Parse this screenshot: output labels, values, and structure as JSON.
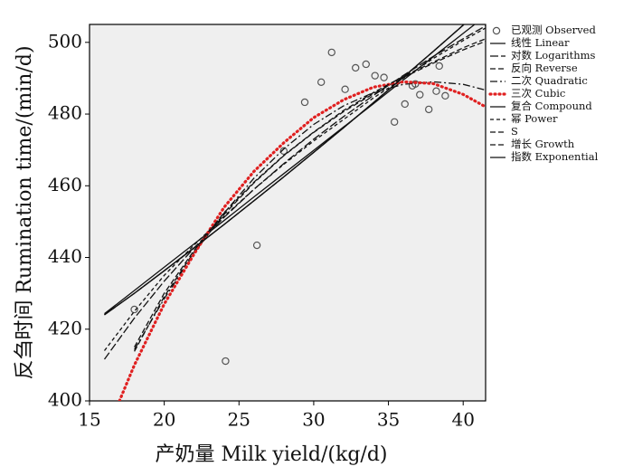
{
  "chart_data": {
    "type": "scatter",
    "x_label": "产奶量 Milk yield/(kg/d)",
    "y_label": "反刍时间 Rumination time/(min/d)",
    "xlim": [
      15,
      41.5
    ],
    "ylim": [
      400,
      505
    ],
    "xticks": [
      15,
      20,
      25,
      30,
      35,
      40
    ],
    "yticks": [
      400,
      420,
      440,
      460,
      480,
      500
    ],
    "legend": "outside-right",
    "series": [
      {
        "name": "已观测 Observed",
        "color": "#555555",
        "marker": "circle",
        "x": [
          18.0,
          24.1,
          26.2,
          28.0,
          29.4,
          30.5,
          31.2,
          32.1,
          32.8,
          33.5,
          34.1,
          34.7,
          35.4,
          36.1,
          36.6,
          36.8,
          37.1,
          37.7,
          38.2,
          38.4,
          38.8
        ],
        "values": [
          425.5,
          411.1,
          443.4,
          469.7,
          483.3,
          488.9,
          497.2,
          486.9,
          492.9,
          493.9,
          490.7,
          490.2,
          477.8,
          482.8,
          487.9,
          488.4,
          485.4,
          481.3,
          486.4,
          493.4,
          485.1
        ]
      },
      {
        "name": "线性 Linear",
        "color": "#111111",
        "line_style": "solid",
        "x": [
          16,
          18,
          20,
          22,
          24,
          26,
          28,
          30,
          32,
          34,
          36,
          38,
          40,
          41.5
        ],
        "values": [
          424.3,
          430.8,
          437.3,
          443.8,
          450.3,
          456.9,
          463.4,
          469.9,
          476.4,
          482.9,
          489.5,
          496.0,
          502.5,
          507.4
        ]
      },
      {
        "name": "对数 Logarithms",
        "color": "#111111",
        "line_style": "longdash",
        "x": [
          16,
          18,
          20,
          22,
          24,
          26,
          28,
          30,
          32,
          34,
          36,
          38,
          40,
          41.5
        ],
        "values": [
          411.6,
          423.1,
          433.4,
          442.7,
          451.2,
          459.0,
          466.2,
          473.0,
          479.3,
          485.2,
          490.8,
          496.1,
          501.0,
          504.6
        ]
      },
      {
        "name": "反向 Reverse",
        "color": "#111111",
        "line_style": "dashed",
        "x": [
          16,
          18,
          20,
          22,
          24,
          26,
          28,
          30,
          32,
          34,
          36,
          38,
          40,
          41.5
        ],
        "values": [
          null,
          413.8,
          429.1,
          441.6,
          452.0,
          460.8,
          468.4,
          474.9,
          480.7,
          485.7,
          490.2,
          494.2,
          497.9,
          500.3
        ]
      },
      {
        "name": "二次 Quadratic",
        "color": "#111111",
        "line_style": "dashdot",
        "x": [
          16,
          18,
          20,
          22,
          24,
          26,
          28,
          30,
          32,
          34,
          36,
          38,
          40,
          41.5
        ],
        "values": [
          null,
          414.3,
          428.5,
          441.2,
          452.4,
          462.1,
          470.3,
          477.1,
          482.3,
          486.0,
          488.3,
          489.0,
          488.3,
          486.7
        ]
      },
      {
        "name": "三次 Cubic",
        "color": "#e02020",
        "line_style": "dotted",
        "x": [
          17,
          18,
          20,
          22,
          24,
          26,
          28,
          30,
          32,
          34,
          36,
          38,
          40,
          41.5
        ],
        "values": [
          400,
          410,
          427,
          441,
          454,
          464,
          472,
          479,
          484,
          487.5,
          489,
          488.5,
          485.5,
          482
        ]
      },
      {
        "name": "复合 Compound",
        "color": "#111111",
        "line_style": "solid",
        "x": [
          16,
          18,
          20,
          22,
          24,
          26,
          28,
          30,
          32,
          34,
          36,
          38,
          40,
          41.5
        ],
        "values": [
          424.0,
          430.0,
          436.3,
          442.7,
          449.2,
          455.8,
          462.5,
          469.3,
          476.2,
          483.2,
          490.3,
          497.5,
          504.8,
          510.3
        ]
      },
      {
        "name": "幂 Power",
        "color": "#111111",
        "line_style": "shortdash",
        "x": [
          16,
          18,
          20,
          22,
          24,
          26,
          28,
          30,
          32,
          34,
          36,
          38,
          40,
          41.5
        ],
        "values": [
          414,
          425,
          435,
          443.5,
          451.5,
          459,
          466,
          472.5,
          478.5,
          484.5,
          490,
          495.5,
          500.5,
          504
        ]
      },
      {
        "name": "S",
        "color": "#111111",
        "line_style": "dashed",
        "x": [
          16,
          18,
          20,
          22,
          24,
          26,
          28,
          30,
          32,
          34,
          36,
          38,
          40,
          41.5
        ],
        "values": [
          null,
          415,
          430,
          442,
          452.5,
          461,
          468.5,
          475,
          481,
          486,
          490.5,
          494.5,
          498.5,
          501
        ]
      },
      {
        "name": "增长 Growth",
        "color": "#111111",
        "line_style": "dashed",
        "x": [
          16,
          18,
          20,
          22,
          24,
          26,
          28,
          30,
          32,
          34,
          36,
          38,
          40,
          41.5
        ],
        "values": [
          424.0,
          430.0,
          436.3,
          442.7,
          449.2,
          455.8,
          462.5,
          469.3,
          476.2,
          483.2,
          490.3,
          497.5,
          504.8,
          510.3
        ]
      },
      {
        "name": "指数 Exponential",
        "color": "#111111",
        "line_style": "solid",
        "x": [
          16,
          18,
          20,
          22,
          24,
          26,
          28,
          30,
          32,
          34,
          36,
          38,
          40,
          41.5
        ],
        "values": [
          424.0,
          430.0,
          436.3,
          442.7,
          449.2,
          455.8,
          462.5,
          469.3,
          476.2,
          483.2,
          490.3,
          497.5,
          504.8,
          510.3
        ]
      }
    ]
  }
}
